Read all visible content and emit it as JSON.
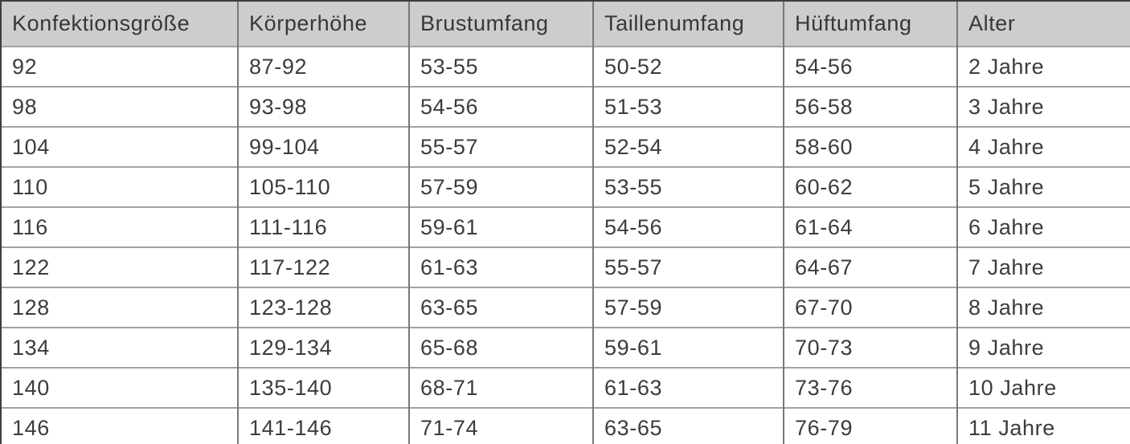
{
  "chart_data": {
    "type": "table",
    "title": "",
    "columns": [
      "Konfektionsgröße",
      "Körperhöhe",
      "Brustumfang",
      "Taillenumfang",
      "Hüftumfang",
      "Alter"
    ],
    "rows": [
      [
        "92",
        "87-92",
        "53-55",
        "50-52",
        "54-56",
        "2 Jahre"
      ],
      [
        "98",
        "93-98",
        "54-56",
        "51-53",
        "56-58",
        "3 Jahre"
      ],
      [
        "104",
        "99-104",
        "55-57",
        "52-54",
        "58-60",
        "4 Jahre"
      ],
      [
        "110",
        "105-110",
        "57-59",
        "53-55",
        "60-62",
        "5 Jahre"
      ],
      [
        "116",
        "111-116",
        "59-61",
        "54-56",
        "61-64",
        "6 Jahre"
      ],
      [
        "122",
        "117-122",
        "61-63",
        "55-57",
        "64-67",
        "7 Jahre"
      ],
      [
        "128",
        "123-128",
        "63-65",
        "57-59",
        "67-70",
        "8 Jahre"
      ],
      [
        "134",
        "129-134",
        "65-68",
        "59-61",
        "70-73",
        "9 Jahre"
      ],
      [
        "140",
        "135-140",
        "68-71",
        "61-63",
        "73-76",
        "10 Jahre"
      ],
      [
        "146",
        "141-146",
        "71-74",
        "63-65",
        "76-79",
        "11 Jahre"
      ]
    ]
  },
  "colors": {
    "header_background": "#cdcdcd",
    "outer_border": "#3e3e3e",
    "inner_border_vertical": "#787878",
    "inner_border_horizontal": "#a2a2a2",
    "text": "#3c3c3c"
  }
}
